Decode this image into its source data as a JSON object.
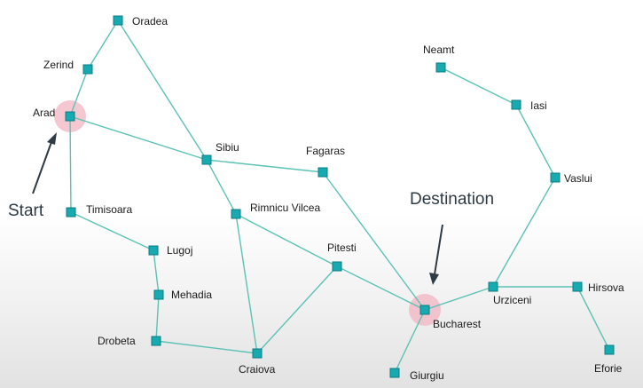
{
  "cities": [
    {
      "id": "oradea",
      "label": "Oradea"
    },
    {
      "id": "zerind",
      "label": "Zerind"
    },
    {
      "id": "arad",
      "label": "Arad"
    },
    {
      "id": "sibiu",
      "label": "Sibiu"
    },
    {
      "id": "fagaras",
      "label": "Fagaras"
    },
    {
      "id": "timisoara",
      "label": "Timisoara"
    },
    {
      "id": "rimnicu",
      "label": "Rimnicu Vilcea"
    },
    {
      "id": "lugoj",
      "label": "Lugoj"
    },
    {
      "id": "pitesti",
      "label": "Pitesti"
    },
    {
      "id": "mehadia",
      "label": "Mehadia"
    },
    {
      "id": "drobeta",
      "label": "Drobeta"
    },
    {
      "id": "craiova",
      "label": "Craiova"
    },
    {
      "id": "bucharest",
      "label": "Bucharest"
    },
    {
      "id": "giurgiu",
      "label": "Giurgiu"
    },
    {
      "id": "urziceni",
      "label": "Urziceni"
    },
    {
      "id": "hirsova",
      "label": "Hirsova"
    },
    {
      "id": "eforie",
      "label": "Eforie"
    },
    {
      "id": "vaslui",
      "label": "Vaslui"
    },
    {
      "id": "iasi",
      "label": "Iasi"
    },
    {
      "id": "neamt",
      "label": "Neamt"
    }
  ],
  "roads": [
    [
      "oradea",
      "zerind"
    ],
    [
      "oradea",
      "sibiu"
    ],
    [
      "zerind",
      "arad"
    ],
    [
      "arad",
      "sibiu"
    ],
    [
      "arad",
      "timisoara"
    ],
    [
      "timisoara",
      "lugoj"
    ],
    [
      "lugoj",
      "mehadia"
    ],
    [
      "mehadia",
      "drobeta"
    ],
    [
      "drobeta",
      "craiova"
    ],
    [
      "sibiu",
      "fagaras"
    ],
    [
      "sibiu",
      "rimnicu"
    ],
    [
      "rimnicu",
      "craiova"
    ],
    [
      "rimnicu",
      "pitesti"
    ],
    [
      "craiova",
      "pitesti"
    ],
    [
      "pitesti",
      "bucharest"
    ],
    [
      "fagaras",
      "bucharest"
    ],
    [
      "bucharest",
      "giurgiu"
    ],
    [
      "bucharest",
      "urziceni"
    ],
    [
      "urziceni",
      "hirsova"
    ],
    [
      "hirsova",
      "eforie"
    ],
    [
      "urziceni",
      "vaslui"
    ],
    [
      "vaslui",
      "iasi"
    ],
    [
      "iasi",
      "neamt"
    ]
  ],
  "start": {
    "city": "arad",
    "label": "Start"
  },
  "destination": {
    "city": "bucharest",
    "label": "Destination"
  },
  "colors": {
    "edge": "#5cc2b5",
    "node": "#17aab0",
    "highlight": "#f2b4c2",
    "annotation": "#2e3a44"
  }
}
